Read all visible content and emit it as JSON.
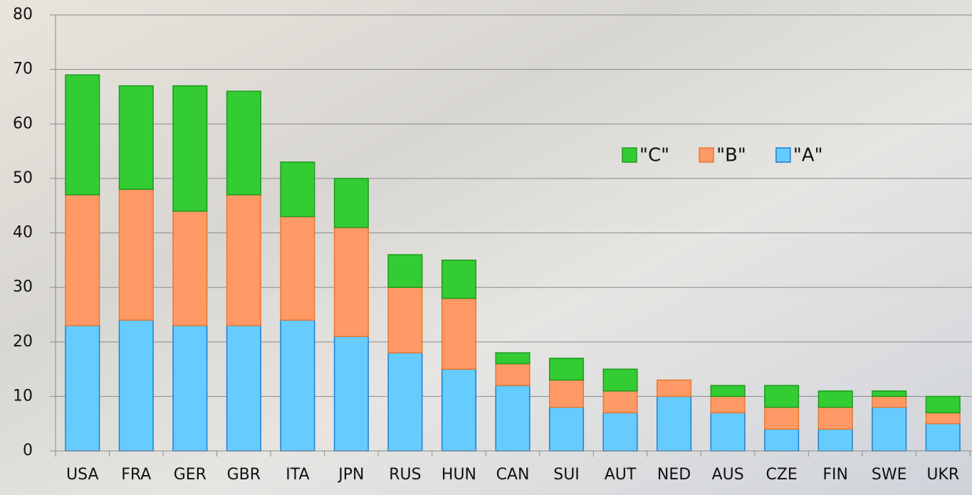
{
  "chart_data": {
    "type": "stacked_bar",
    "categories": [
      "USA",
      "FRA",
      "GER",
      "GBR",
      "ITA",
      "JPN",
      "RUS",
      "HUN",
      "CAN",
      "SUI",
      "AUT",
      "NED",
      "AUS",
      "CZE",
      "FIN",
      "SWE",
      "UKR"
    ],
    "series": [
      {
        "name": "\"A\"",
        "color": "#66ccff",
        "values": [
          23,
          24,
          23,
          23,
          24,
          21,
          18,
          15,
          12,
          8,
          7,
          10,
          7,
          4,
          4,
          8,
          5
        ]
      },
      {
        "name": "\"B\"",
        "color": "#ff9966",
        "values": [
          24,
          24,
          21,
          24,
          19,
          20,
          12,
          13,
          4,
          5,
          4,
          3,
          3,
          4,
          4,
          2,
          2
        ]
      },
      {
        "name": "\"C\"",
        "color": "#33cc33",
        "values": [
          22,
          19,
          23,
          19,
          10,
          9,
          6,
          7,
          2,
          4,
          4,
          0,
          2,
          4,
          3,
          1,
          3
        ]
      }
    ],
    "ylim": [
      0,
      80
    ],
    "yticks": [
      0,
      10,
      20,
      30,
      40,
      50,
      60,
      70,
      80
    ],
    "grid": true,
    "legend": "upper right"
  }
}
